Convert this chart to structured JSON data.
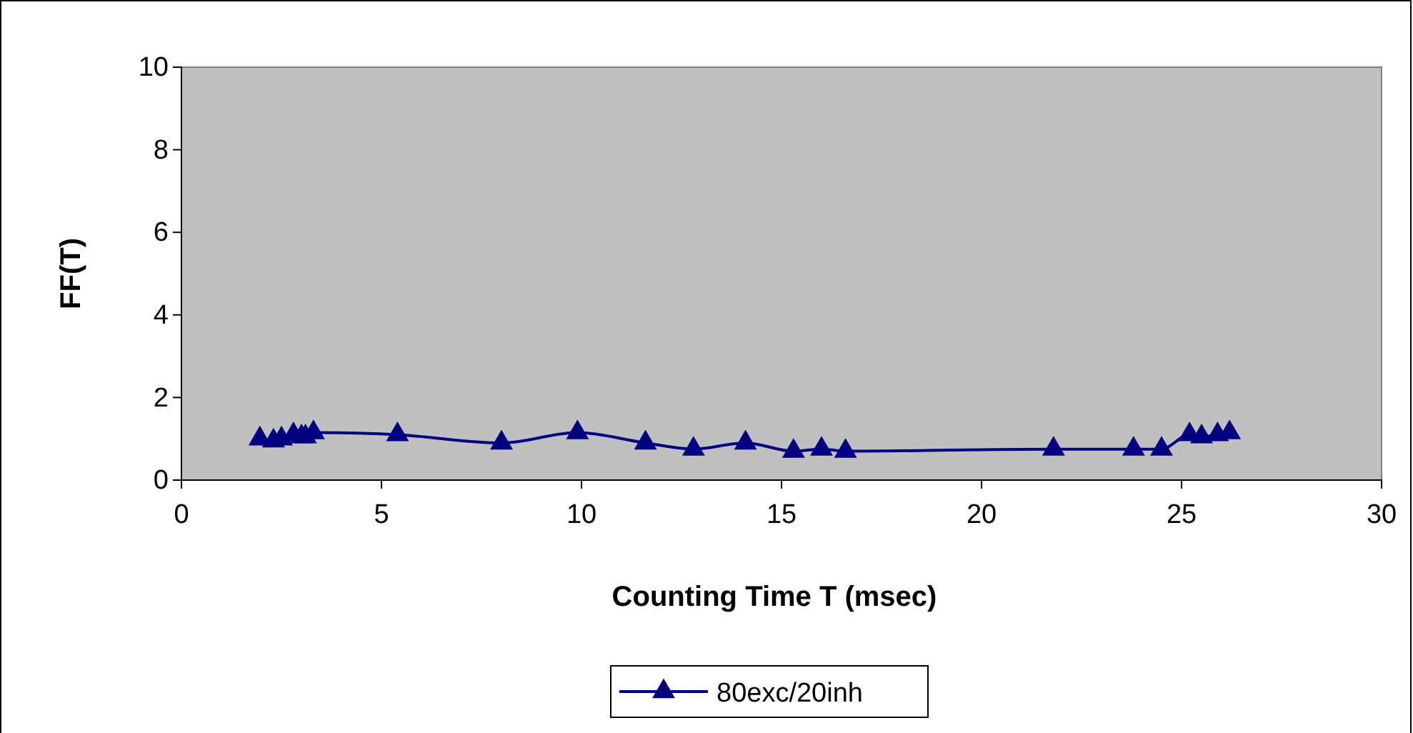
{
  "chart_data": {
    "type": "line",
    "xlabel": "Counting Time T (msec)",
    "ylabel": "FF(T)",
    "xlim": [
      0,
      30
    ],
    "xticks": [
      0,
      5,
      10,
      15,
      20,
      25,
      30
    ],
    "ylim": [
      0,
      10
    ],
    "yticks": [
      0,
      2,
      4,
      6,
      8,
      10
    ],
    "grid": false,
    "legend": "bottom",
    "marker": "triangle",
    "line_style": "solid",
    "series": [
      {
        "name": "80exc/20inh",
        "color": "#000080",
        "x": [
          1.96,
          2.3,
          2.5,
          2.8,
          3.0,
          3.1,
          3.3,
          5.4,
          8.0,
          9.9,
          11.6,
          12.8,
          14.1,
          15.3,
          16.0,
          16.6,
          21.8,
          23.8,
          24.5,
          25.2,
          25.5,
          25.9,
          26.2
        ],
        "values": [
          1.0,
          0.95,
          1.0,
          1.1,
          1.05,
          1.05,
          1.15,
          1.1,
          0.9,
          1.15,
          0.9,
          0.75,
          0.9,
          0.7,
          0.75,
          0.7,
          0.75,
          0.75,
          0.75,
          1.1,
          1.05,
          1.1,
          1.15
        ]
      }
    ]
  }
}
